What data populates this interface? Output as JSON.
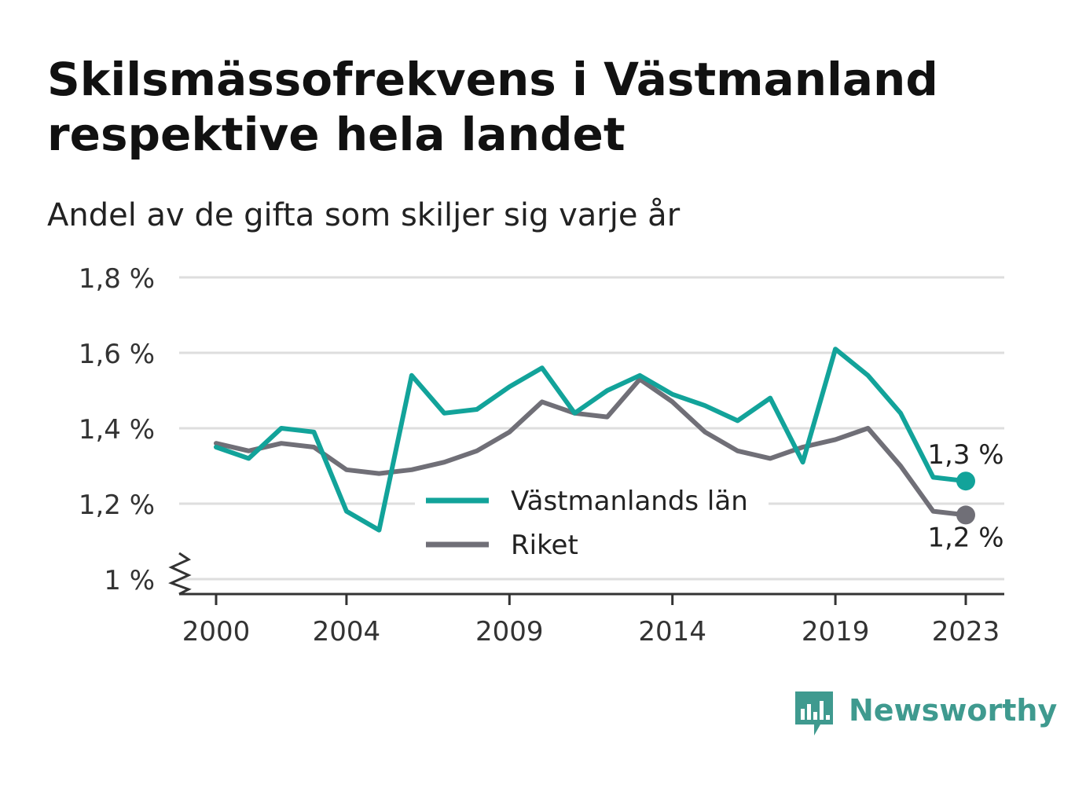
{
  "chart_data": {
    "type": "line",
    "title": "Skilsmässofrekvens i Västmanland respektive hela landet",
    "subtitle": "Andel av de gifta som skiljer sig varje år",
    "xlabel": "",
    "ylabel": "",
    "x": [
      2000,
      2001,
      2002,
      2003,
      2004,
      2005,
      2006,
      2007,
      2008,
      2009,
      2010,
      2011,
      2012,
      2013,
      2014,
      2015,
      2016,
      2017,
      2018,
      2019,
      2020,
      2021,
      2022,
      2023
    ],
    "x_ticks": [
      "2000",
      "2004",
      "2009",
      "2014",
      "2019",
      "2023"
    ],
    "x_tick_values": [
      2000,
      2004,
      2009,
      2014,
      2019,
      2023
    ],
    "xlim": [
      2000,
      2023
    ],
    "ylim": [
      1.0,
      1.8
    ],
    "y_ticks": [
      "1 %",
      "1,2 %",
      "1,4 %",
      "1,6 %",
      "1,8 %"
    ],
    "y_tick_values": [
      1.0,
      1.2,
      1.4,
      1.6,
      1.8
    ],
    "y_axis_break": true,
    "grid": true,
    "legend_position": "center-bottom",
    "series": [
      {
        "name": "Västmanlands län",
        "color": "#12a39a",
        "values": [
          1.35,
          1.32,
          1.4,
          1.39,
          1.18,
          1.13,
          1.54,
          1.44,
          1.45,
          1.51,
          1.56,
          1.44,
          1.5,
          1.54,
          1.49,
          1.46,
          1.42,
          1.48,
          1.31,
          1.61,
          1.54,
          1.44,
          1.27,
          1.26
        ],
        "end_label": "1,3 %"
      },
      {
        "name": "Riket",
        "color": "#706f77",
        "values": [
          1.36,
          1.34,
          1.36,
          1.35,
          1.29,
          1.28,
          1.29,
          1.31,
          1.34,
          1.39,
          1.47,
          1.44,
          1.43,
          1.53,
          1.47,
          1.39,
          1.34,
          1.32,
          1.35,
          1.37,
          1.4,
          1.3,
          1.18,
          1.17
        ],
        "end_label": "1,2 %"
      }
    ]
  },
  "brand": {
    "name": "Newsworthy",
    "color": "#3f9a8f",
    "icon": "newsworthy-logo-icon"
  }
}
